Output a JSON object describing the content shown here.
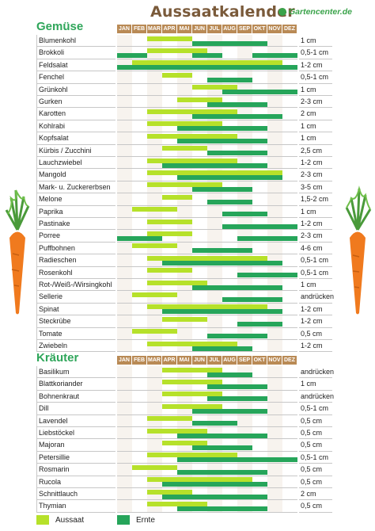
{
  "header": {
    "title": "Aussaatkalender",
    "brand": "Gartencenter.de"
  },
  "months": [
    "JAN",
    "FEB",
    "MAR",
    "APR",
    "MAI",
    "JUN",
    "JUL",
    "AUG",
    "SEP",
    "OKT",
    "NOV",
    "DEZ"
  ],
  "colors": {
    "sow": "#b6e12a",
    "harvest": "#26a55a",
    "accent": "#2fa65a",
    "month_bg": "#b98a55"
  },
  "legend": {
    "sow_label": "Aussaat",
    "harvest_label": "Ernte"
  },
  "sections": [
    {
      "title": "Gemüse",
      "rows": [
        {
          "name": "Blumenkohl",
          "depth": "1 cm",
          "sow": [
            [
              3,
              5
            ]
          ],
          "harvest": [
            [
              6,
              10
            ]
          ]
        },
        {
          "name": "Brokkoli",
          "depth": "0,5-1 cm",
          "sow": [
            [
              3,
              6
            ]
          ],
          "harvest": [
            [
              1,
              2
            ],
            [
              6,
              7
            ],
            [
              10,
              12
            ]
          ]
        },
        {
          "name": "Feldsalat",
          "depth": "1-2 cm",
          "sow": [
            [
              2,
              11
            ]
          ],
          "harvest": [
            [
              1,
              12
            ]
          ]
        },
        {
          "name": "Fenchel",
          "depth": "0,5-1 cm",
          "sow": [
            [
              4,
              5
            ]
          ],
          "harvest": [
            [
              7,
              9
            ]
          ]
        },
        {
          "name": "Grünkohl",
          "depth": "1 cm",
          "sow": [
            [
              6,
              8
            ]
          ],
          "harvest": [
            [
              8,
              12
            ]
          ]
        },
        {
          "name": "Gurken",
          "depth": "2-3 cm",
          "sow": [
            [
              5,
              7
            ]
          ],
          "harvest": [
            [
              7,
              10
            ]
          ]
        },
        {
          "name": "Karotten",
          "depth": "2 cm",
          "sow": [
            [
              3,
              8
            ]
          ],
          "harvest": [
            [
              6,
              11
            ]
          ]
        },
        {
          "name": "Kohlrabi",
          "depth": "1 cm",
          "sow": [
            [
              3,
              7
            ]
          ],
          "harvest": [
            [
              5,
              10
            ]
          ]
        },
        {
          "name": "Kopfsalat",
          "depth": "1 cm",
          "sow": [
            [
              3,
              8
            ]
          ],
          "harvest": [
            [
              5,
              10
            ]
          ]
        },
        {
          "name": "Kürbis / Zucchini",
          "depth": "2,5 cm",
          "sow": [
            [
              4,
              6
            ]
          ],
          "harvest": [
            [
              7,
              10
            ]
          ]
        },
        {
          "name": "Lauchzwiebel",
          "depth": "1-2 cm",
          "sow": [
            [
              3,
              8
            ]
          ],
          "harvest": [
            [
              4,
              10
            ]
          ]
        },
        {
          "name": "Mangold",
          "depth": "2-3 cm",
          "sow": [
            [
              3,
              11
            ]
          ],
          "harvest": [
            [
              5,
              11
            ]
          ]
        },
        {
          "name": "Mark- u. Zuckererbsen",
          "depth": "3-5 cm",
          "sow": [
            [
              3,
              7
            ]
          ],
          "harvest": [
            [
              6,
              9
            ]
          ]
        },
        {
          "name": "Melone",
          "depth": "1,5-2 cm",
          "sow": [
            [
              4,
              5
            ]
          ],
          "harvest": [
            [
              7,
              9
            ]
          ]
        },
        {
          "name": "Paprika",
          "depth": "1 cm",
          "sow": [
            [
              2,
              4
            ]
          ],
          "harvest": [
            [
              8,
              10
            ]
          ]
        },
        {
          "name": "Pastinake",
          "depth": "1-2 cm",
          "sow": [
            [
              3,
              5
            ]
          ],
          "harvest": [
            [
              8,
              12
            ]
          ]
        },
        {
          "name": "Porree",
          "depth": "2-3 cm",
          "sow": [
            [
              3,
              5
            ]
          ],
          "harvest": [
            [
              1,
              3
            ],
            [
              9,
              12
            ]
          ]
        },
        {
          "name": "Puffbohnen",
          "depth": "4-6 cm",
          "sow": [
            [
              2,
              4
            ]
          ],
          "harvest": [
            [
              6,
              9
            ]
          ]
        },
        {
          "name": "Radieschen",
          "depth": "0,5-1 cm",
          "sow": [
            [
              3,
              10
            ]
          ],
          "harvest": [
            [
              4,
              11
            ]
          ]
        },
        {
          "name": "Rosenkohl",
          "depth": "0,5-1 cm",
          "sow": [
            [
              3,
              5
            ]
          ],
          "harvest": [
            [
              9,
              12
            ]
          ]
        },
        {
          "name": "Rot-/Weiß-/Wirsingkohl",
          "depth": "1 cm",
          "sow": [
            [
              3,
              6
            ]
          ],
          "harvest": [
            [
              6,
              11
            ]
          ]
        },
        {
          "name": "Sellerie",
          "depth": "andrücken",
          "sow": [
            [
              2,
              4
            ]
          ],
          "harvest": [
            [
              8,
              11
            ]
          ]
        },
        {
          "name": "Spinat",
          "depth": "1-2 cm",
          "sow": [
            [
              3,
              10
            ]
          ],
          "harvest": [
            [
              4,
              11
            ]
          ]
        },
        {
          "name": "Steckrübe",
          "depth": "1-2 cm",
          "sow": [
            [
              4,
              6
            ]
          ],
          "harvest": [
            [
              9,
              11
            ]
          ]
        },
        {
          "name": "Tomate",
          "depth": "0,5 cm",
          "sow": [
            [
              2,
              4
            ]
          ],
          "harvest": [
            [
              7,
              10
            ]
          ]
        },
        {
          "name": "Zwiebeln",
          "depth": "1-2 cm",
          "sow": [
            [
              3,
              8
            ]
          ],
          "harvest": [
            [
              6,
              9
            ]
          ]
        }
      ]
    },
    {
      "title": "Kräuter",
      "rows": [
        {
          "name": "Basilikum",
          "depth": "andrücken",
          "sow": [
            [
              4,
              7
            ]
          ],
          "harvest": [
            [
              7,
              9
            ]
          ]
        },
        {
          "name": "Blattkoriander",
          "depth": "1 cm",
          "sow": [
            [
              4,
              7
            ]
          ],
          "harvest": [
            [
              7,
              10
            ]
          ]
        },
        {
          "name": "Bohnenkraut",
          "depth": "andrücken",
          "sow": [
            [
              4,
              7
            ]
          ],
          "harvest": [
            [
              7,
              10
            ]
          ]
        },
        {
          "name": "Dill",
          "depth": "0,5-1 cm",
          "sow": [
            [
              4,
              7
            ]
          ],
          "harvest": [
            [
              6,
              10
            ]
          ]
        },
        {
          "name": "Lavendel",
          "depth": "0,5 cm",
          "sow": [
            [
              3,
              5
            ]
          ],
          "harvest": [
            [
              6,
              8
            ]
          ]
        },
        {
          "name": "Liebstöckel",
          "depth": "0,5 cm",
          "sow": [
            [
              3,
              6
            ]
          ],
          "harvest": [
            [
              5,
              10
            ]
          ]
        },
        {
          "name": "Majoran",
          "depth": "0,5 cm",
          "sow": [
            [
              4,
              6
            ]
          ],
          "harvest": [
            [
              6,
              9
            ]
          ]
        },
        {
          "name": "Petersillie",
          "depth": "0,5-1 cm",
          "sow": [
            [
              3,
              8
            ]
          ],
          "harvest": [
            [
              5,
              12
            ]
          ]
        },
        {
          "name": "Rosmarin",
          "depth": "0,5 cm",
          "sow": [
            [
              2,
              4
            ]
          ],
          "harvest": [
            [
              5,
              10
            ]
          ]
        },
        {
          "name": "Rucola",
          "depth": "0,5 cm",
          "sow": [
            [
              3,
              9
            ]
          ],
          "harvest": [
            [
              4,
              10
            ]
          ]
        },
        {
          "name": "Schnittlauch",
          "depth": "2 cm",
          "sow": [
            [
              3,
              5
            ]
          ],
          "harvest": [
            [
              4,
              10
            ]
          ]
        },
        {
          "name": "Thymian",
          "depth": "0,5 cm",
          "sow": [
            [
              3,
              6
            ]
          ],
          "harvest": [
            [
              5,
              10
            ]
          ]
        }
      ]
    }
  ]
}
